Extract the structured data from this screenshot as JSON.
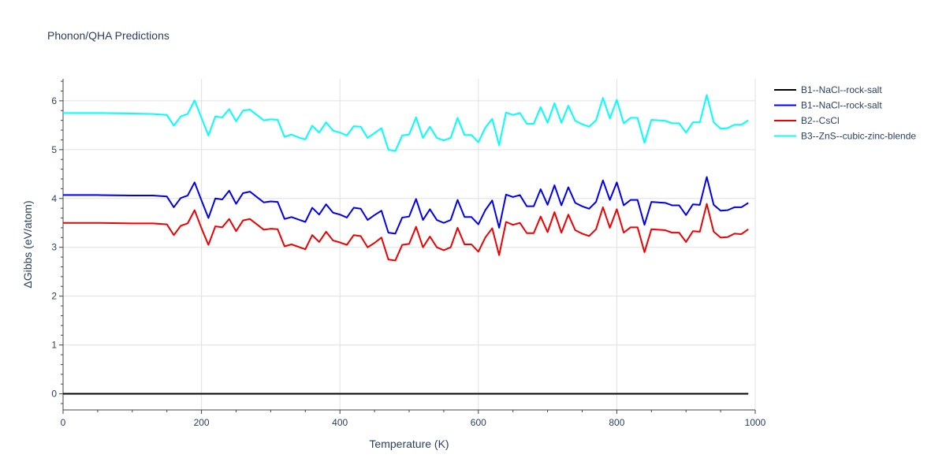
{
  "chart_data": {
    "type": "line",
    "title": "Phonon/QHA Predictions",
    "xlabel": "Temperature (K)",
    "ylabel": "ΔGibbs (eV/atom)",
    "xlim": [
      0,
      1000
    ],
    "ylim": [
      -0.33,
      6.45
    ],
    "xticks": [
      0,
      200,
      400,
      600,
      800,
      1000
    ],
    "yticks": [
      0,
      1,
      2,
      3,
      4,
      5,
      6
    ],
    "grid": true,
    "legend_position": "top-right",
    "x": [
      0,
      50,
      100,
      130,
      150,
      160,
      170,
      180,
      190,
      200,
      210,
      220,
      230,
      240,
      250,
      260,
      270,
      280,
      290,
      300,
      310,
      320,
      330,
      340,
      350,
      360,
      370,
      380,
      390,
      400,
      410,
      420,
      430,
      440,
      450,
      460,
      470,
      480,
      490,
      500,
      510,
      520,
      530,
      540,
      550,
      560,
      570,
      580,
      590,
      600,
      610,
      620,
      630,
      640,
      650,
      660,
      670,
      680,
      690,
      700,
      710,
      720,
      730,
      740,
      750,
      760,
      770,
      780,
      790,
      800,
      810,
      820,
      830,
      840,
      850,
      860,
      870,
      880,
      890,
      900,
      910,
      920,
      930,
      940,
      950,
      960,
      970,
      980,
      990
    ],
    "series": [
      {
        "name": "B1--NaCl--rock-salt",
        "color": "#000000",
        "values": [
          0,
          0,
          0,
          0,
          0,
          0,
          0,
          0,
          0,
          0,
          0,
          0,
          0,
          0,
          0,
          0,
          0,
          0,
          0,
          0,
          0,
          0,
          0,
          0,
          0,
          0,
          0,
          0,
          0,
          0,
          0,
          0,
          0,
          0,
          0,
          0,
          0,
          0,
          0,
          0,
          0,
          0,
          0,
          0,
          0,
          0,
          0,
          0,
          0,
          0,
          0,
          0,
          0,
          0,
          0,
          0,
          0,
          0,
          0,
          0,
          0,
          0,
          0,
          0,
          0,
          0,
          0,
          0,
          0,
          0,
          0,
          0,
          0,
          0,
          0,
          0,
          0,
          0,
          0,
          0,
          0,
          0,
          0,
          0,
          0,
          0,
          0,
          0,
          0
        ]
      },
      {
        "name": "B1--NaCl--rock-salt",
        "color": "#0000ee",
        "values": [
          4.07,
          4.07,
          4.06,
          4.06,
          4.04,
          3.82,
          4.01,
          4.06,
          4.33,
          3.96,
          3.6,
          4.0,
          3.98,
          4.16,
          3.89,
          4.11,
          4.14,
          4.03,
          3.92,
          3.94,
          3.93,
          3.58,
          3.62,
          3.57,
          3.52,
          3.81,
          3.67,
          3.88,
          3.71,
          3.67,
          3.61,
          3.81,
          3.79,
          3.56,
          3.66,
          3.75,
          3.3,
          3.28,
          3.61,
          3.63,
          3.99,
          3.56,
          3.78,
          3.56,
          3.5,
          3.56,
          3.97,
          3.62,
          3.62,
          3.47,
          3.76,
          3.96,
          3.4,
          4.08,
          4.03,
          4.07,
          3.84,
          3.84,
          4.19,
          3.87,
          4.27,
          3.86,
          4.23,
          3.91,
          3.84,
          3.79,
          3.93,
          4.37,
          3.97,
          4.33,
          3.86,
          3.97,
          3.97,
          3.46,
          3.93,
          3.92,
          3.91,
          3.86,
          3.86,
          3.66,
          3.88,
          3.87,
          4.44,
          3.87,
          3.75,
          3.76,
          3.82,
          3.82,
          3.91
        ]
      },
      {
        "name": "B2--CsCl",
        "color": "#ee0000",
        "values": [
          3.5,
          3.5,
          3.49,
          3.49,
          3.47,
          3.25,
          3.44,
          3.49,
          3.76,
          3.39,
          3.05,
          3.43,
          3.41,
          3.58,
          3.33,
          3.55,
          3.58,
          3.47,
          3.36,
          3.38,
          3.37,
          3.02,
          3.06,
          3.01,
          2.96,
          3.25,
          3.11,
          3.32,
          3.14,
          3.1,
          3.05,
          3.25,
          3.23,
          3.0,
          3.09,
          3.2,
          2.75,
          2.73,
          3.05,
          3.07,
          3.42,
          3.0,
          3.22,
          3.0,
          2.94,
          3.0,
          3.4,
          3.06,
          3.06,
          2.91,
          3.2,
          3.39,
          2.84,
          3.52,
          3.46,
          3.5,
          3.29,
          3.29,
          3.63,
          3.31,
          3.72,
          3.3,
          3.67,
          3.35,
          3.28,
          3.23,
          3.37,
          3.82,
          3.4,
          3.78,
          3.3,
          3.41,
          3.41,
          2.9,
          3.37,
          3.36,
          3.35,
          3.3,
          3.3,
          3.11,
          3.33,
          3.32,
          3.89,
          3.32,
          3.2,
          3.21,
          3.28,
          3.27,
          3.37
        ]
      },
      {
        "name": "B3--ZnS--cubic-zinc-blende",
        "color": "#00ffff",
        "values": [
          5.75,
          5.75,
          5.74,
          5.73,
          5.71,
          5.49,
          5.68,
          5.73,
          6.01,
          5.65,
          5.29,
          5.68,
          5.66,
          5.83,
          5.58,
          5.8,
          5.82,
          5.71,
          5.6,
          5.62,
          5.61,
          5.26,
          5.31,
          5.25,
          5.21,
          5.49,
          5.35,
          5.56,
          5.39,
          5.35,
          5.29,
          5.48,
          5.47,
          5.24,
          5.34,
          5.44,
          5.0,
          4.97,
          5.29,
          5.31,
          5.66,
          5.24,
          5.47,
          5.24,
          5.19,
          5.24,
          5.65,
          5.3,
          5.3,
          5.15,
          5.45,
          5.63,
          5.09,
          5.76,
          5.71,
          5.75,
          5.53,
          5.53,
          5.87,
          5.55,
          5.95,
          5.55,
          5.9,
          5.59,
          5.52,
          5.47,
          5.6,
          6.06,
          5.64,
          6.02,
          5.54,
          5.65,
          5.65,
          5.14,
          5.61,
          5.6,
          5.59,
          5.54,
          5.54,
          5.35,
          5.56,
          5.56,
          6.12,
          5.56,
          5.43,
          5.44,
          5.51,
          5.51,
          5.6
        ]
      }
    ]
  }
}
